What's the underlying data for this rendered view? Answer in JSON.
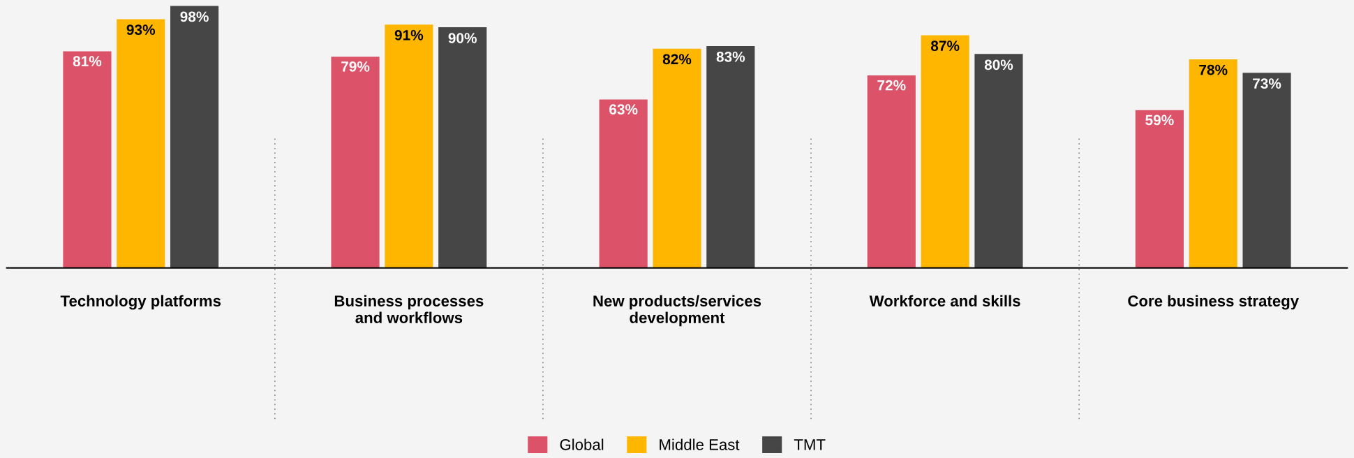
{
  "chart_data": {
    "type": "bar",
    "categories": [
      "Technology platforms",
      "Business processes\nand workflows",
      "New products/services\ndevelopment",
      "Workforce and skills",
      "Core business strategy"
    ],
    "series": [
      {
        "name": "Global",
        "color": "#dc5268",
        "values": [
          81,
          79,
          63,
          72,
          59
        ],
        "value_labels": [
          "81%",
          "79%",
          "63%",
          "72%",
          "59%"
        ]
      },
      {
        "name": "Middle East",
        "color": "#ffb600",
        "values": [
          93,
          91,
          82,
          87,
          78
        ],
        "value_labels": [
          "93%",
          "91%",
          "82%",
          "87%",
          "78%"
        ]
      },
      {
        "name": "TMT",
        "color": "#464646",
        "values": [
          98,
          90,
          83,
          80,
          73
        ],
        "value_labels": [
          "98%",
          "90%",
          "83%",
          "80%",
          "73%"
        ]
      }
    ],
    "legend": "bottom",
    "grid": false
  }
}
